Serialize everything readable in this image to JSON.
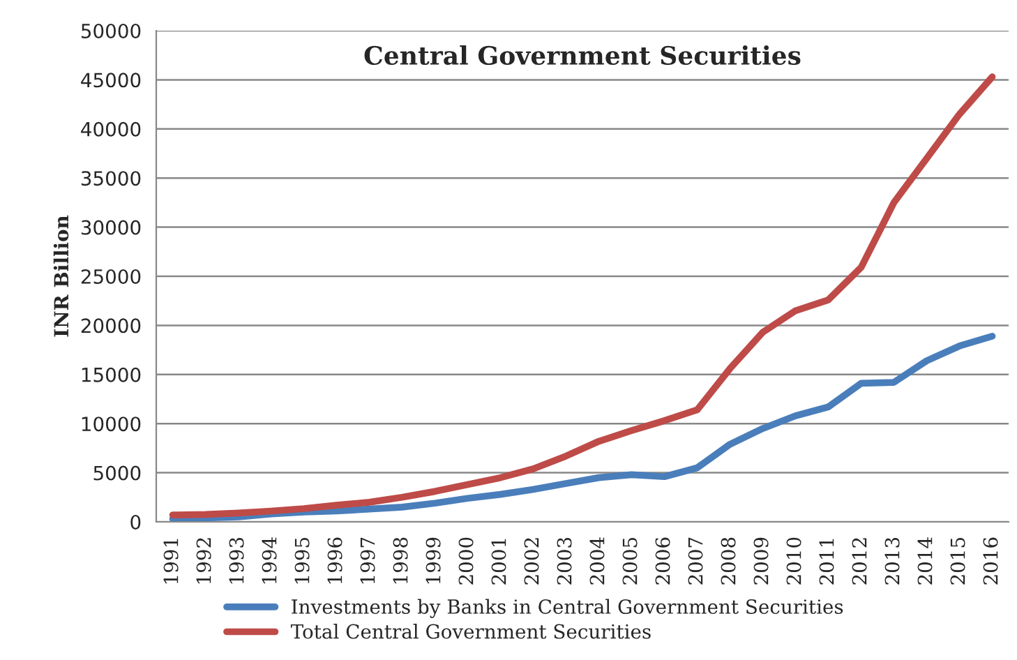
{
  "chart_data": {
    "type": "line",
    "title": "Central Government Securities",
    "ylabel": "INR Billion",
    "categories": [
      "1991",
      "1992",
      "1993",
      "1994",
      "1995",
      "1996",
      "1997",
      "1998",
      "1999",
      "2000",
      "2001",
      "2002",
      "2003",
      "2004",
      "2005",
      "2006",
      "2007",
      "2008",
      "2009",
      "2010",
      "2011",
      "2012",
      "2013",
      "2014",
      "2015",
      "2016"
    ],
    "series": [
      {
        "name": "Investments by Banks in Central Government Securities",
        "color": "#4a7ebb",
        "values": [
          300,
          400,
          500,
          800,
          1000,
          1100,
          1300,
          1500,
          1900,
          2400,
          2800,
          3300,
          3900,
          4500,
          4800,
          4600,
          5500,
          7900,
          9500,
          10800,
          11700,
          14100,
          14200,
          16400,
          17900,
          18900
        ]
      },
      {
        "name": "Total Central Government Securities",
        "color": "#be4b48",
        "values": [
          700,
          750,
          900,
          1100,
          1350,
          1700,
          2000,
          2500,
          3100,
          3800,
          4500,
          5400,
          6700,
          8200,
          9300,
          10300,
          11400,
          15600,
          19300,
          21500,
          22600,
          25900,
          32500,
          37000,
          41500,
          45300
        ]
      }
    ],
    "ylim": [
      0,
      50000
    ],
    "yticks": [
      0,
      5000,
      10000,
      15000,
      20000,
      25000,
      30000,
      35000,
      40000,
      45000,
      50000
    ],
    "grid": "y",
    "legend": "bottom",
    "marker": "none",
    "line_style": "solid"
  }
}
